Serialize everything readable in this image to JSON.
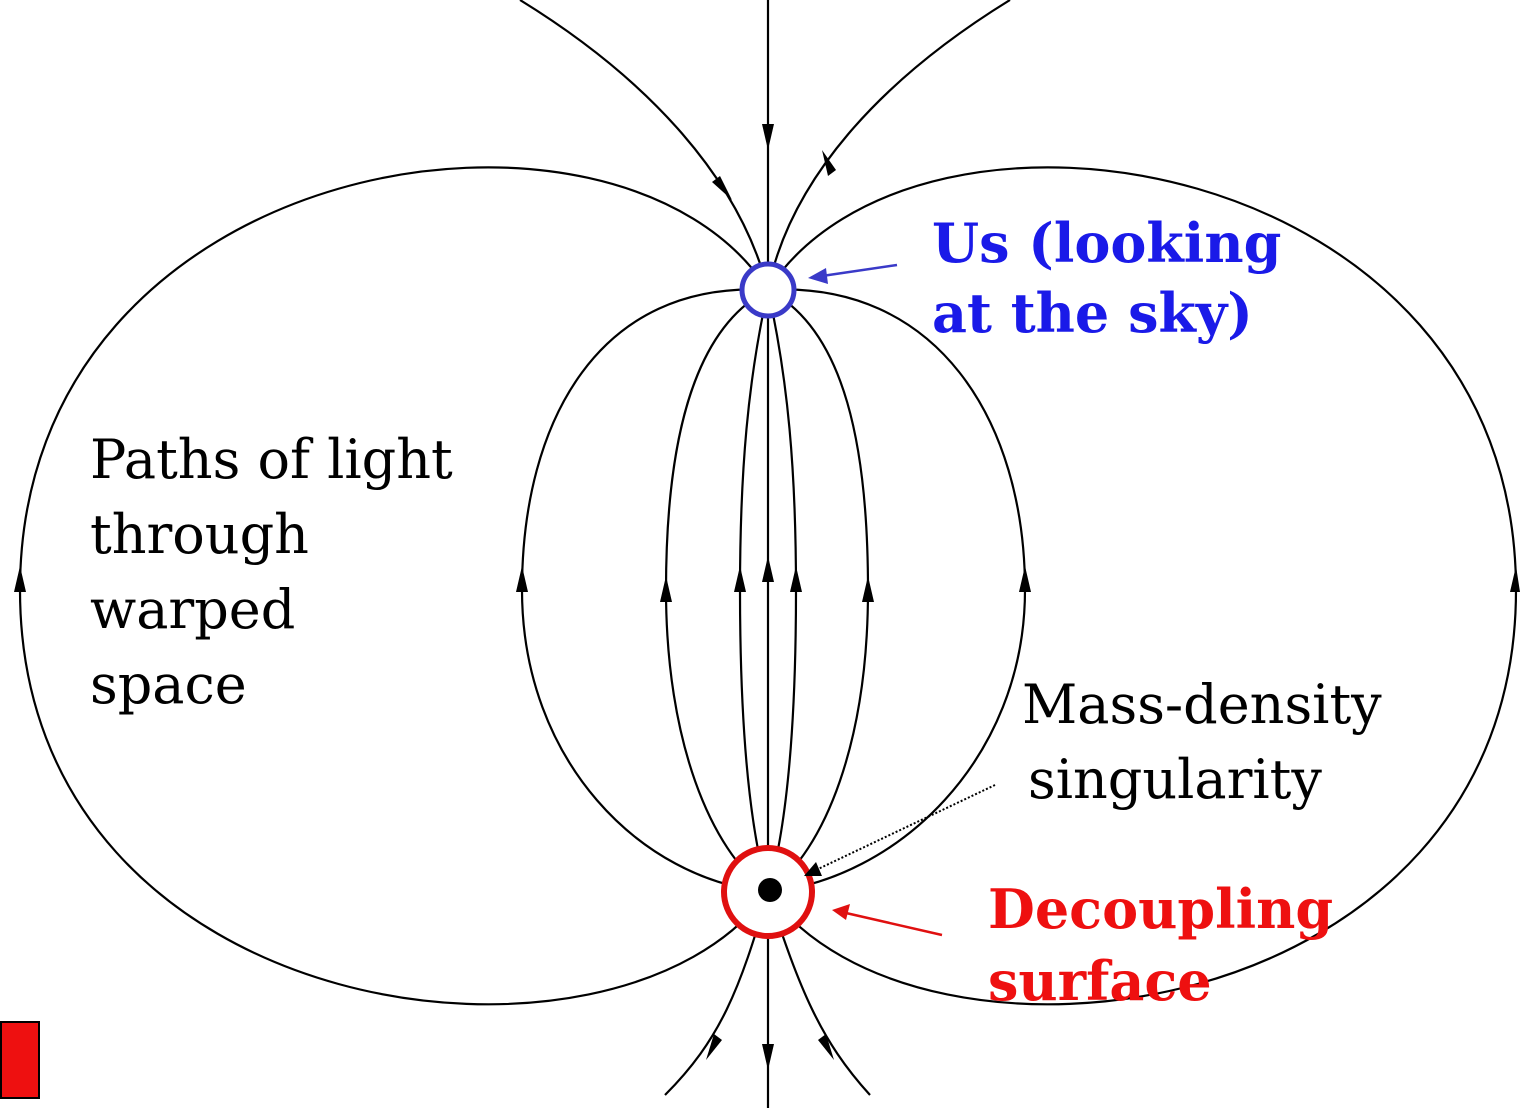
{
  "labels": {
    "us": {
      "lines": [
        "Us (looking",
        "at the sky)"
      ]
    },
    "paths": {
      "lines": [
        "Paths of light",
        "through",
        "warped",
        "space"
      ]
    },
    "singularity": {
      "lines": [
        "Mass-density",
        "singularity"
      ]
    },
    "decoupling": {
      "lines": [
        "Decoupling",
        "surface"
      ]
    }
  }
}
